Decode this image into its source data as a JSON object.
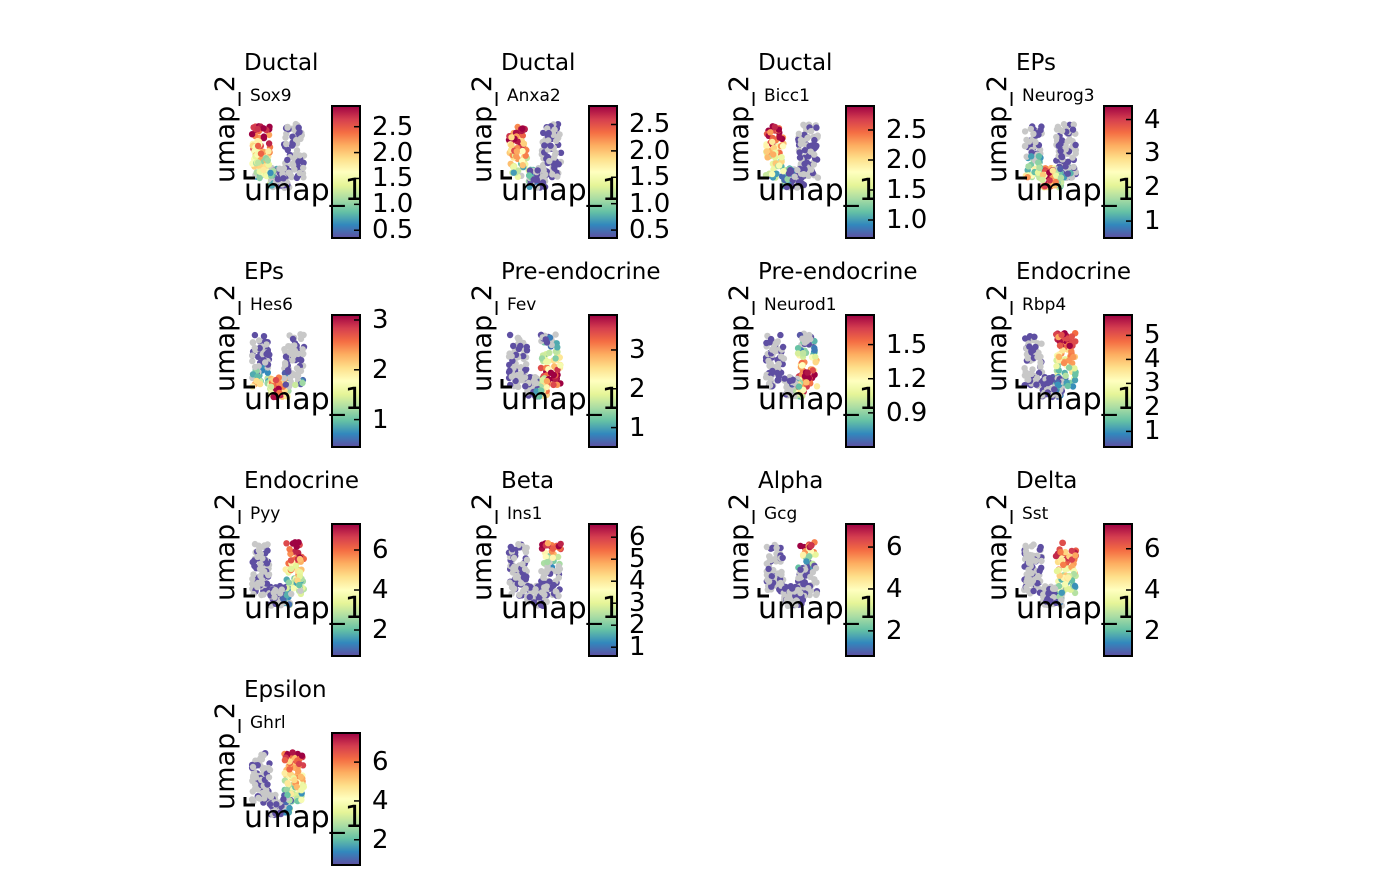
{
  "chart_data": [
    {
      "type": "scatter",
      "title": "Ductal",
      "gene": "Sox9",
      "xlabel": "umap_1",
      "ylabel": "umap_2",
      "hotspot": "left",
      "colorbar": {
        "range": [
          0.35,
          2.9
        ],
        "ticks": [
          "0.5",
          "1.0",
          "1.5",
          "2.0",
          "2.5"
        ],
        "tick_values": [
          0.5,
          1.0,
          1.5,
          2.0,
          2.5
        ]
      }
    },
    {
      "type": "scatter",
      "title": "Ductal",
      "gene": "Anxa2",
      "xlabel": "umap_1",
      "ylabel": "umap_2",
      "hotspot": "left",
      "colorbar": {
        "range": [
          0.35,
          2.85
        ],
        "ticks": [
          "0.5",
          "1.0",
          "1.5",
          "2.0",
          "2.5"
        ],
        "tick_values": [
          0.5,
          1.0,
          1.5,
          2.0,
          2.5
        ]
      }
    },
    {
      "type": "scatter",
      "title": "Ductal",
      "gene": "Bicc1",
      "xlabel": "umap_1",
      "ylabel": "umap_2",
      "hotspot": "left",
      "colorbar": {
        "range": [
          0.7,
          2.9
        ],
        "ticks": [
          "1.0",
          "1.5",
          "2.0",
          "2.5"
        ],
        "tick_values": [
          1.0,
          1.5,
          2.0,
          2.5
        ]
      }
    },
    {
      "type": "scatter",
      "title": "EPs",
      "gene": "Neurog3",
      "xlabel": "umap_1",
      "ylabel": "umap_2",
      "hotspot": "bottom",
      "colorbar": {
        "range": [
          0.5,
          4.4
        ],
        "ticks": [
          "1",
          "2",
          "3",
          "4"
        ],
        "tick_values": [
          1,
          2,
          3,
          4
        ]
      }
    },
    {
      "type": "scatter",
      "title": "EPs",
      "gene": "Hes6",
      "xlabel": "umap_1",
      "ylabel": "umap_2",
      "hotspot": "bottom",
      "colorbar": {
        "range": [
          0.45,
          3.1
        ],
        "ticks": [
          "1",
          "2",
          "3"
        ],
        "tick_values": [
          1,
          2,
          3
        ]
      }
    },
    {
      "type": "scatter",
      "title": "Pre-endocrine",
      "gene": "Fev",
      "xlabel": "umap_1",
      "ylabel": "umap_2",
      "hotspot": "right-bottom",
      "colorbar": {
        "range": [
          0.5,
          3.9
        ],
        "ticks": [
          "1",
          "2",
          "3"
        ],
        "tick_values": [
          1,
          2,
          3
        ]
      }
    },
    {
      "type": "scatter",
      "title": "Pre-endocrine",
      "gene": "Neurod1",
      "xlabel": "umap_1",
      "ylabel": "umap_2",
      "hotspot": "right-bottom",
      "colorbar": {
        "range": [
          0.6,
          1.76
        ],
        "ticks": [
          "0.9",
          "1.2",
          "1.5"
        ],
        "tick_values": [
          0.9,
          1.2,
          1.5
        ]
      }
    },
    {
      "type": "scatter",
      "title": "Endocrine",
      "gene": "Rbp4",
      "xlabel": "umap_1",
      "ylabel": "umap_2",
      "hotspot": "right",
      "colorbar": {
        "range": [
          0.35,
          5.85
        ],
        "ticks": [
          "1",
          "2",
          "3",
          "4",
          "5"
        ],
        "tick_values": [
          1,
          2,
          3,
          4,
          5
        ]
      }
    },
    {
      "type": "scatter",
      "title": "Endocrine",
      "gene": "Pyy",
      "xlabel": "umap_1",
      "ylabel": "umap_2",
      "hotspot": "right",
      "colorbar": {
        "range": [
          0.7,
          7.3
        ],
        "ticks": [
          "2",
          "4",
          "6"
        ],
        "tick_values": [
          2,
          4,
          6
        ]
      }
    },
    {
      "type": "scatter",
      "title": "Beta",
      "gene": "Ins1",
      "xlabel": "umap_1",
      "ylabel": "umap_2",
      "hotspot": "right-top",
      "colorbar": {
        "range": [
          0.6,
          6.6
        ],
        "ticks": [
          "1",
          "2",
          "3",
          "4",
          "5",
          "6"
        ],
        "tick_values": [
          1,
          2,
          3,
          4,
          5,
          6
        ]
      }
    },
    {
      "type": "scatter",
      "title": "Alpha",
      "gene": "Gcg",
      "xlabel": "umap_1",
      "ylabel": "umap_2",
      "hotspot": "right-top",
      "colorbar": {
        "range": [
          0.8,
          7.1
        ],
        "ticks": [
          "2",
          "4",
          "6"
        ],
        "tick_values": [
          2,
          4,
          6
        ]
      }
    },
    {
      "type": "scatter",
      "title": "Delta",
      "gene": "Sst",
      "xlabel": "umap_1",
      "ylabel": "umap_2",
      "hotspot": "right",
      "colorbar": {
        "range": [
          0.8,
          7.2
        ],
        "ticks": [
          "2",
          "4",
          "6"
        ],
        "tick_values": [
          2,
          4,
          6
        ]
      }
    },
    {
      "type": "scatter",
      "title": "Epsilon",
      "gene": "Ghrl",
      "xlabel": "umap_1",
      "ylabel": "umap_2",
      "hotspot": "right",
      "colorbar": {
        "range": [
          0.7,
          7.5
        ],
        "ticks": [
          "2",
          "4",
          "6"
        ],
        "tick_values": [
          2,
          4,
          6
        ]
      }
    }
  ],
  "colors": {
    "palette": [
      "#5e4fa2",
      "#3288bd",
      "#66c2a5",
      "#abdda4",
      "#e6f598",
      "#ffffbf",
      "#fee08b",
      "#fdae61",
      "#f46d43",
      "#d53e4f",
      "#9e0142"
    ],
    "na": "#c8c8c8"
  }
}
